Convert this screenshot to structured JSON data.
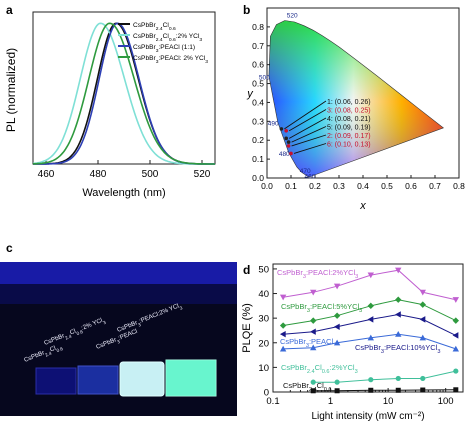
{
  "panels": {
    "a": {
      "letter": "a",
      "chart_data": {
        "type": "line",
        "xlabel": "Wavelength (nm)",
        "ylabel": "PL (normalized)",
        "xlim": [
          455,
          525
        ],
        "xticks": [
          460,
          480,
          500,
          520
        ],
        "legend_placement": "top-right",
        "series": [
          {
            "name": "CsPbBr2.4Cl0.6",
            "color": "#111111",
            "center": 487.0,
            "fwhm": 18.5
          },
          {
            "name": "CsPbBr2.4Cl0.6:2% YCl3",
            "color": "#7fe0d6",
            "center": 481.0,
            "fwhm": 20.0
          },
          {
            "name": "CsPbBr3:PEACl (1:1)",
            "color": "#2d3fb5",
            "center": 487.5,
            "fwhm": 18.0
          },
          {
            "name": "CsPbBr3:PEACl: 2% YCl3",
            "color": "#2e9a3e",
            "center": 484.5,
            "fwhm": 20.5
          }
        ]
      }
    },
    "b": {
      "letter": "b",
      "chart_data": {
        "type": "scatter",
        "title_xaxis": "x",
        "title_yaxis": "y",
        "xlim": [
          0,
          0.8
        ],
        "ylim": [
          0,
          0.9
        ],
        "xticks": [
          "0.0",
          "0.1",
          "0.2",
          "0.3",
          "0.4",
          "0.5",
          "0.6",
          "0.7",
          "0.8"
        ],
        "yticks": [
          "0.0",
          "0.1",
          "0.2",
          "0.3",
          "0.4",
          "0.5",
          "0.6",
          "0.7",
          "0.8"
        ],
        "wavelength_labels": [
          "460",
          "470",
          "480",
          "490",
          "500",
          "520"
        ],
        "points": [
          {
            "label": "1: (0.06, 0.26)",
            "x": 0.06,
            "y": 0.26
          },
          {
            "label": "3: (0.08, 0.25)",
            "x": 0.08,
            "y": 0.25
          },
          {
            "label": "4: (0.08, 0.21)",
            "x": 0.08,
            "y": 0.21
          },
          {
            "label": "5: (0.09, 0.19)",
            "x": 0.09,
            "y": 0.19
          },
          {
            "label": "2: (0.09, 0.17)",
            "x": 0.09,
            "y": 0.17
          },
          {
            "label": "6: (0.10, 0.13)",
            "x": 0.1,
            "y": 0.13
          }
        ],
        "label_colors": [
          "#111111",
          "#c8102e",
          "#111111",
          "#111111",
          "#c8102e",
          "#c8102e"
        ]
      }
    },
    "c": {
      "letter": "c",
      "sample_labels": [
        "CsPbBr2.4Cl0.6",
        "CsPbBr2.4Cl0.6:2% YCl3",
        "CsPbBr3:PEACl",
        "CsPbBr3:PEACl:2% YCl3"
      ]
    },
    "d": {
      "letter": "d",
      "chart_data": {
        "type": "line",
        "xlabel": "Light intensity (mW cm⁻²)",
        "ylabel": "PLQE (%)",
        "xscale": "log",
        "xlim": [
          0.1,
          200
        ],
        "ylim": [
          0,
          52
        ],
        "xticks": [
          "0.1",
          "1",
          "10",
          "100"
        ],
        "yticks": [
          0,
          10,
          20,
          30,
          40,
          50
        ],
        "x": [
          0.15,
          0.5,
          1.3,
          5,
          15,
          40,
          150
        ],
        "series": [
          {
            "name": "CsPbBr3:PEACl:2%YCl3",
            "color": "#c05fd0",
            "marker": "tri-down",
            "values": [
              38.5,
              40.5,
              43,
              47.5,
              49.5,
              40.5,
              37.5
            ]
          },
          {
            "name": "CsPbBr3:PEACl:5%YCl3",
            "color": "#2e9a3e",
            "marker": "diamond",
            "values": [
              27,
              29,
              31,
              35,
              37.5,
              35.5,
              29
            ]
          },
          {
            "name": "CsPbBr3:PEACl:10%YCl3",
            "color": "#1a1a8a",
            "marker": "tri-left",
            "values": [
              23.5,
              24.5,
              26.5,
              29.5,
              31.5,
              29.5,
              23
            ]
          },
          {
            "name": "CsPbBr3:PEACl",
            "color": "#3a6ad8",
            "marker": "tri-up",
            "values": [
              17.5,
              18,
              20,
              22,
              23.5,
              22,
              17.5
            ]
          },
          {
            "name": "CsPbBr2.4Cl0.6:2%YCl3",
            "color": "#3fbf9a",
            "marker": "circle",
            "values": [
              null,
              4,
              4,
              5,
              5.5,
              5.5,
              8.5
            ]
          },
          {
            "name": "CsPbBr2.4Cl0.6",
            "color": "#111111",
            "marker": "square",
            "values": [
              null,
              0.5,
              0.5,
              0.7,
              0.7,
              0.8,
              0.9
            ]
          }
        ]
      }
    }
  }
}
